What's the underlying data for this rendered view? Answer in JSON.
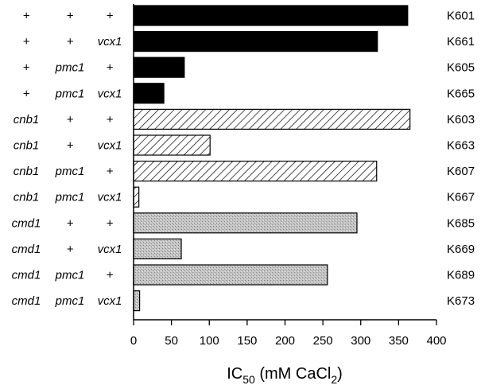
{
  "chart_data": {
    "type": "bar",
    "orientation": "horizontal",
    "rows": [
      {
        "genotype": [
          "+",
          "+",
          "+"
        ],
        "strain": "K601",
        "value": 362,
        "fill": "solid"
      },
      {
        "genotype": [
          "+",
          "+",
          "vcx1"
        ],
        "strain": "K661",
        "value": 322,
        "fill": "solid"
      },
      {
        "genotype": [
          "+",
          "pmc1",
          "+"
        ],
        "strain": "K605",
        "value": 67,
        "fill": "solid"
      },
      {
        "genotype": [
          "+",
          "pmc1",
          "vcx1"
        ],
        "strain": "K665",
        "value": 40,
        "fill": "solid"
      },
      {
        "genotype": [
          "cnb1",
          "+",
          "+"
        ],
        "strain": "K603",
        "value": 365,
        "fill": "hatched"
      },
      {
        "genotype": [
          "cnb1",
          "+",
          "vcx1"
        ],
        "strain": "K663",
        "value": 101,
        "fill": "hatched"
      },
      {
        "genotype": [
          "cnb1",
          "pmc1",
          "+"
        ],
        "strain": "K607",
        "value": 321,
        "fill": "hatched"
      },
      {
        "genotype": [
          "cnb1",
          "pmc1",
          "vcx1"
        ],
        "strain": "K667",
        "value": 7,
        "fill": "hatched"
      },
      {
        "genotype": [
          "cmd1",
          "+",
          "+"
        ],
        "strain": "K685",
        "value": 295,
        "fill": "stippled"
      },
      {
        "genotype": [
          "cmd1",
          "+",
          "vcx1"
        ],
        "strain": "K669",
        "value": 63,
        "fill": "stippled"
      },
      {
        "genotype": [
          "cmd1",
          "pmc1",
          "+"
        ],
        "strain": "K689",
        "value": 256,
        "fill": "stippled"
      },
      {
        "genotype": [
          "cmd1",
          "pmc1",
          "vcx1"
        ],
        "strain": "K673",
        "value": 8,
        "fill": "stippled"
      }
    ],
    "xlim": [
      0,
      400
    ],
    "xticks": [
      "0",
      "50",
      "100",
      "150",
      "200",
      "250",
      "300",
      "350",
      "400"
    ],
    "xlabel": {
      "main": "IC",
      "sub": "50",
      "mid": " (mM CaCl",
      "sub2": "2",
      "end": ")"
    },
    "grid": false
  },
  "colors": {
    "solid": "#000000",
    "hatch": "#000000",
    "stipple": "#b0b0b0"
  }
}
